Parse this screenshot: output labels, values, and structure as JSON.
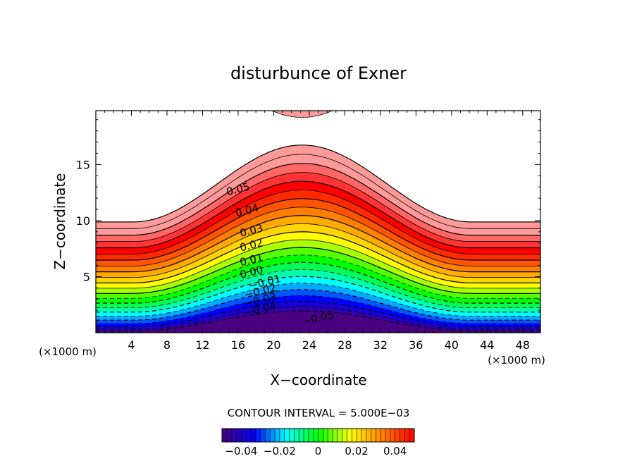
{
  "chart_data": {
    "type": "contour",
    "title": "disturbunce of Exner",
    "xlabel": "X−coordinate",
    "ylabel": "Z−coordinate",
    "x_unit_left": "(×1000 m)",
    "x_unit_right": "(×1000 m)",
    "xlim": [
      0,
      50
    ],
    "ylim": [
      0,
      19.8
    ],
    "x_ticks": [
      4,
      8,
      12,
      16,
      20,
      24,
      28,
      32,
      36,
      40,
      44,
      48
    ],
    "y_ticks": [
      5,
      10,
      15
    ],
    "contour_interval_text": "CONTOUR INTERVAL = 5.000E−03",
    "contour_interval": 0.005,
    "value_range": [
      -0.05,
      0.06
    ],
    "contour_labels": [
      {
        "text": "0.05",
        "x": 16.0,
        "y": 12.8
      },
      {
        "text": "0.04",
        "x": 17.0,
        "y": 10.9
      },
      {
        "text": "0.03",
        "x": 17.5,
        "y": 9.1
      },
      {
        "text": "0.02",
        "x": 17.5,
        "y": 7.8
      },
      {
        "text": "0.01",
        "x": 17.5,
        "y": 6.5
      },
      {
        "text": "0.00",
        "x": 17.5,
        "y": 5.4
      },
      {
        "text": "−0.01",
        "x": 19.0,
        "y": 4.5
      },
      {
        "text": "−0.02",
        "x": 18.5,
        "y": 3.7
      },
      {
        "text": "−0.03",
        "x": 18.5,
        "y": 2.9
      },
      {
        "text": "−0.04",
        "x": 18.5,
        "y": 2.1
      },
      {
        "text": "−0.05",
        "x": 25.0,
        "y": 1.3
      }
    ],
    "colorbar": {
      "ticks": [
        -0.04,
        -0.02,
        0,
        0.02,
        0.04
      ],
      "tick_labels": [
        "−0.04",
        "−0.02",
        "0",
        "0.02",
        "0.04"
      ],
      "range": [
        -0.05,
        0.05
      ]
    },
    "colormap": [
      "#4b0082",
      "#0000ff",
      "#00ffff",
      "#00ff00",
      "#ffff00",
      "#ff7f00",
      "#ff0000",
      "#ff9a9a"
    ]
  }
}
